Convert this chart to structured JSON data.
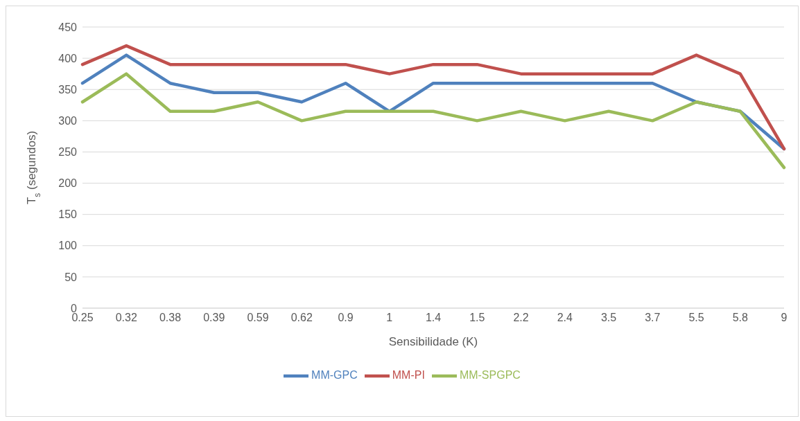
{
  "chart_data": {
    "type": "line",
    "xlabel": "Sensibilidade (K)",
    "ylabel": "T$_{s}$ (segundos)",
    "categories": [
      "0.25",
      "0.32",
      "0.38",
      "0.39",
      "0.59",
      "0.62",
      "0.9",
      "1",
      "1.4",
      "1.5",
      "2.2",
      "2.4",
      "3.5",
      "3.7",
      "5.5",
      "5.8",
      "9"
    ],
    "series": [
      {
        "name": "MM-GPC",
        "color": "#4f81bd",
        "values": [
          360,
          405,
          360,
          345,
          345,
          330,
          360,
          315,
          360,
          360,
          360,
          360,
          360,
          360,
          330,
          315,
          255
        ]
      },
      {
        "name": "MM-PI",
        "color": "#c0504d",
        "values": [
          390,
          420,
          390,
          390,
          390,
          390,
          390,
          375,
          390,
          390,
          375,
          375,
          375,
          375,
          405,
          375,
          255
        ]
      },
      {
        "name": "MM-SPGPC",
        "color": "#9bbb59",
        "values": [
          330,
          375,
          315,
          315,
          330,
          300,
          315,
          315,
          315,
          300,
          315,
          300,
          315,
          300,
          330,
          315,
          225
        ]
      }
    ],
    "ylim": [
      0,
      450
    ],
    "yticks": [
      0,
      50,
      100,
      150,
      200,
      250,
      300,
      350,
      400,
      450
    ],
    "grid": "y",
    "legend": "bottom",
    "marker": "none",
    "line_style": "solid"
  }
}
